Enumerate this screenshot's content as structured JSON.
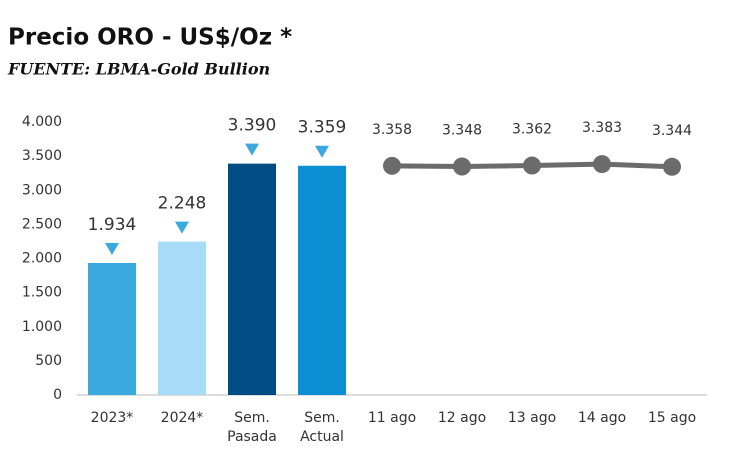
{
  "chart_data": {
    "type": "bar",
    "title": "Precio ORO - US$/Oz *",
    "subtitle": "FUENTE: LBMA-Gold Bullion",
    "categories": [
      "2023*",
      "2024*",
      "Sem. Pasada",
      "Sem. Actual",
      "11 ago",
      "12 ago",
      "13 ago",
      "14 ago",
      "15 ago"
    ],
    "series": [
      {
        "type": "bar",
        "colors": [
          "#3aa9dd",
          "#a8dcf6",
          "#004d85",
          "#0a90d2"
        ],
        "values": [
          1934,
          2248,
          3390,
          3359,
          null,
          null,
          null,
          null,
          null
        ],
        "value_labels": [
          "1.934",
          "2.248",
          "3.390",
          "3.359",
          null,
          null,
          null,
          null,
          null
        ]
      },
      {
        "type": "line",
        "color": "#6b6b6b",
        "values": [
          null,
          null,
          null,
          null,
          3358,
          3348,
          3362,
          3383,
          3344
        ],
        "value_labels": [
          null,
          null,
          null,
          null,
          "3.358",
          "3.348",
          "3.362",
          "3.383",
          "3.344"
        ]
      }
    ],
    "ylim": [
      0,
      4000
    ],
    "yticks": [
      0,
      500,
      {
        "value": 1000,
        "label": "1.000"
      },
      {
        "value": 1500,
        "label": "1.500"
      },
      {
        "value": 2000,
        "label": "2.000"
      },
      {
        "value": 2500,
        "label": "2.500"
      },
      {
        "value": 3000,
        "label": "3.000"
      },
      {
        "value": 3500,
        "label": "3.500"
      },
      {
        "value": 4000,
        "label": "4.000"
      }
    ],
    "grid": false
  }
}
